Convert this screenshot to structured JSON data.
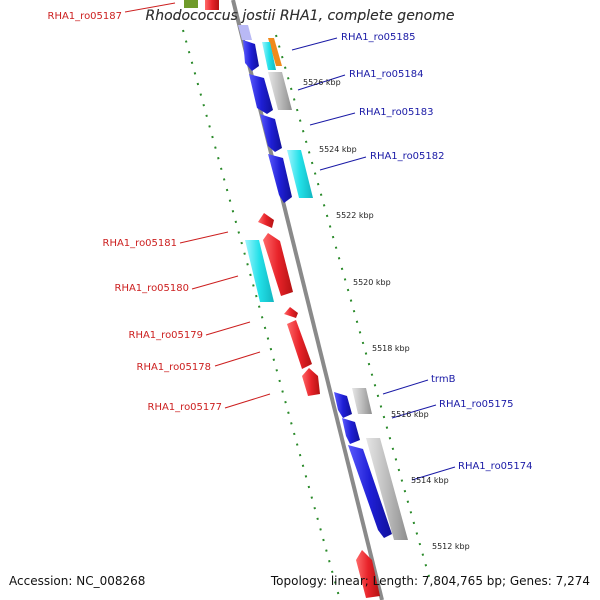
{
  "title": "Rhodococcus jostii RHA1, complete genome",
  "accession_text": "Accession: NC_008268",
  "summary_text": "Topology: linear; Length: 7,804,765 bp; Genes: 7,274",
  "scale_marks": [
    "5526 kbp",
    "5524 kbp",
    "5522 kbp",
    "5520 kbp",
    "5518 kbp",
    "5516 kbp",
    "5514 kbp",
    "5512 kbp"
  ],
  "genes_left": [
    "RHA1_ro05187",
    "RHA1_ro05181",
    "RHA1_ro05180",
    "RHA1_ro05179",
    "RHA1_ro05178",
    "RHA1_ro05177"
  ],
  "genes_right": [
    "RHA1_ro05185",
    "RHA1_ro05184",
    "RHA1_ro05183",
    "RHA1_ro05182",
    "trmB",
    "RHA1_ro05175",
    "RHA1_ro05174"
  ],
  "colors": {
    "forward_cds": "#e8232a",
    "reverse_cds": "#1f1fd6",
    "cyan_feature": "#22e0e8",
    "gray_feature": "#b9b9b9",
    "orange_feature": "#f08a1a",
    "backbone": "#8a8a8a",
    "tick_green": "#2a8a2a"
  }
}
